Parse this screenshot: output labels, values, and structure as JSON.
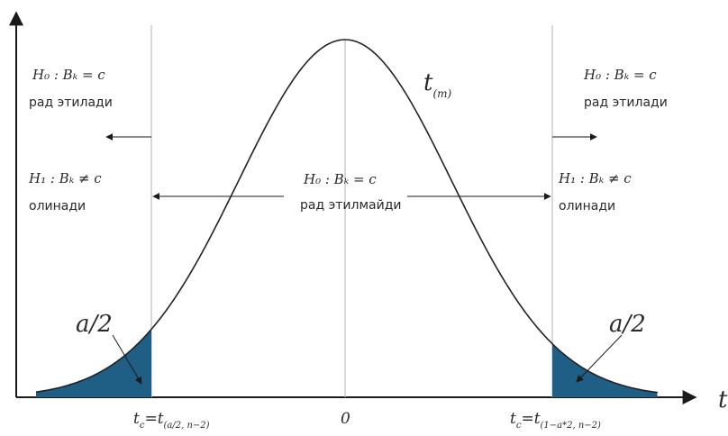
{
  "colors": {
    "axis": "#1a1a1a",
    "curve": "#222222",
    "grid_line": "#bdbdbd",
    "tail_fill": "#1f5f86",
    "text": "#2a2a2a"
  },
  "curve_label": {
    "main": "t",
    "sub": "(m)"
  },
  "axis_label_x": "t",
  "tails": {
    "left_label": "a/2",
    "right_label": "a/2"
  },
  "x_ticks": {
    "left": {
      "main": "t",
      "sub_c": "c",
      "eq": "=t",
      "sub2": "(a/2, n−2)"
    },
    "center": "0",
    "right": {
      "main": "t",
      "sub_c": "c",
      "eq": "=t",
      "sub2": "(1−a*2, n−2)"
    }
  },
  "regions": {
    "left": {
      "h0": "H₀ : Bₖ = c",
      "h0_text": "рад этилади",
      "h1": "H₁ : Bₖ ≠ c",
      "h1_text": "олинади"
    },
    "center": {
      "h0": "H₀ : Bₖ = c",
      "h0_text": "рад этилмайди"
    },
    "right": {
      "h0": "H₀ : Bₖ = c",
      "h0_text": "рад этилади",
      "h1": "H₁ : Bₖ ≠ c",
      "h1_text": "олинади"
    }
  }
}
